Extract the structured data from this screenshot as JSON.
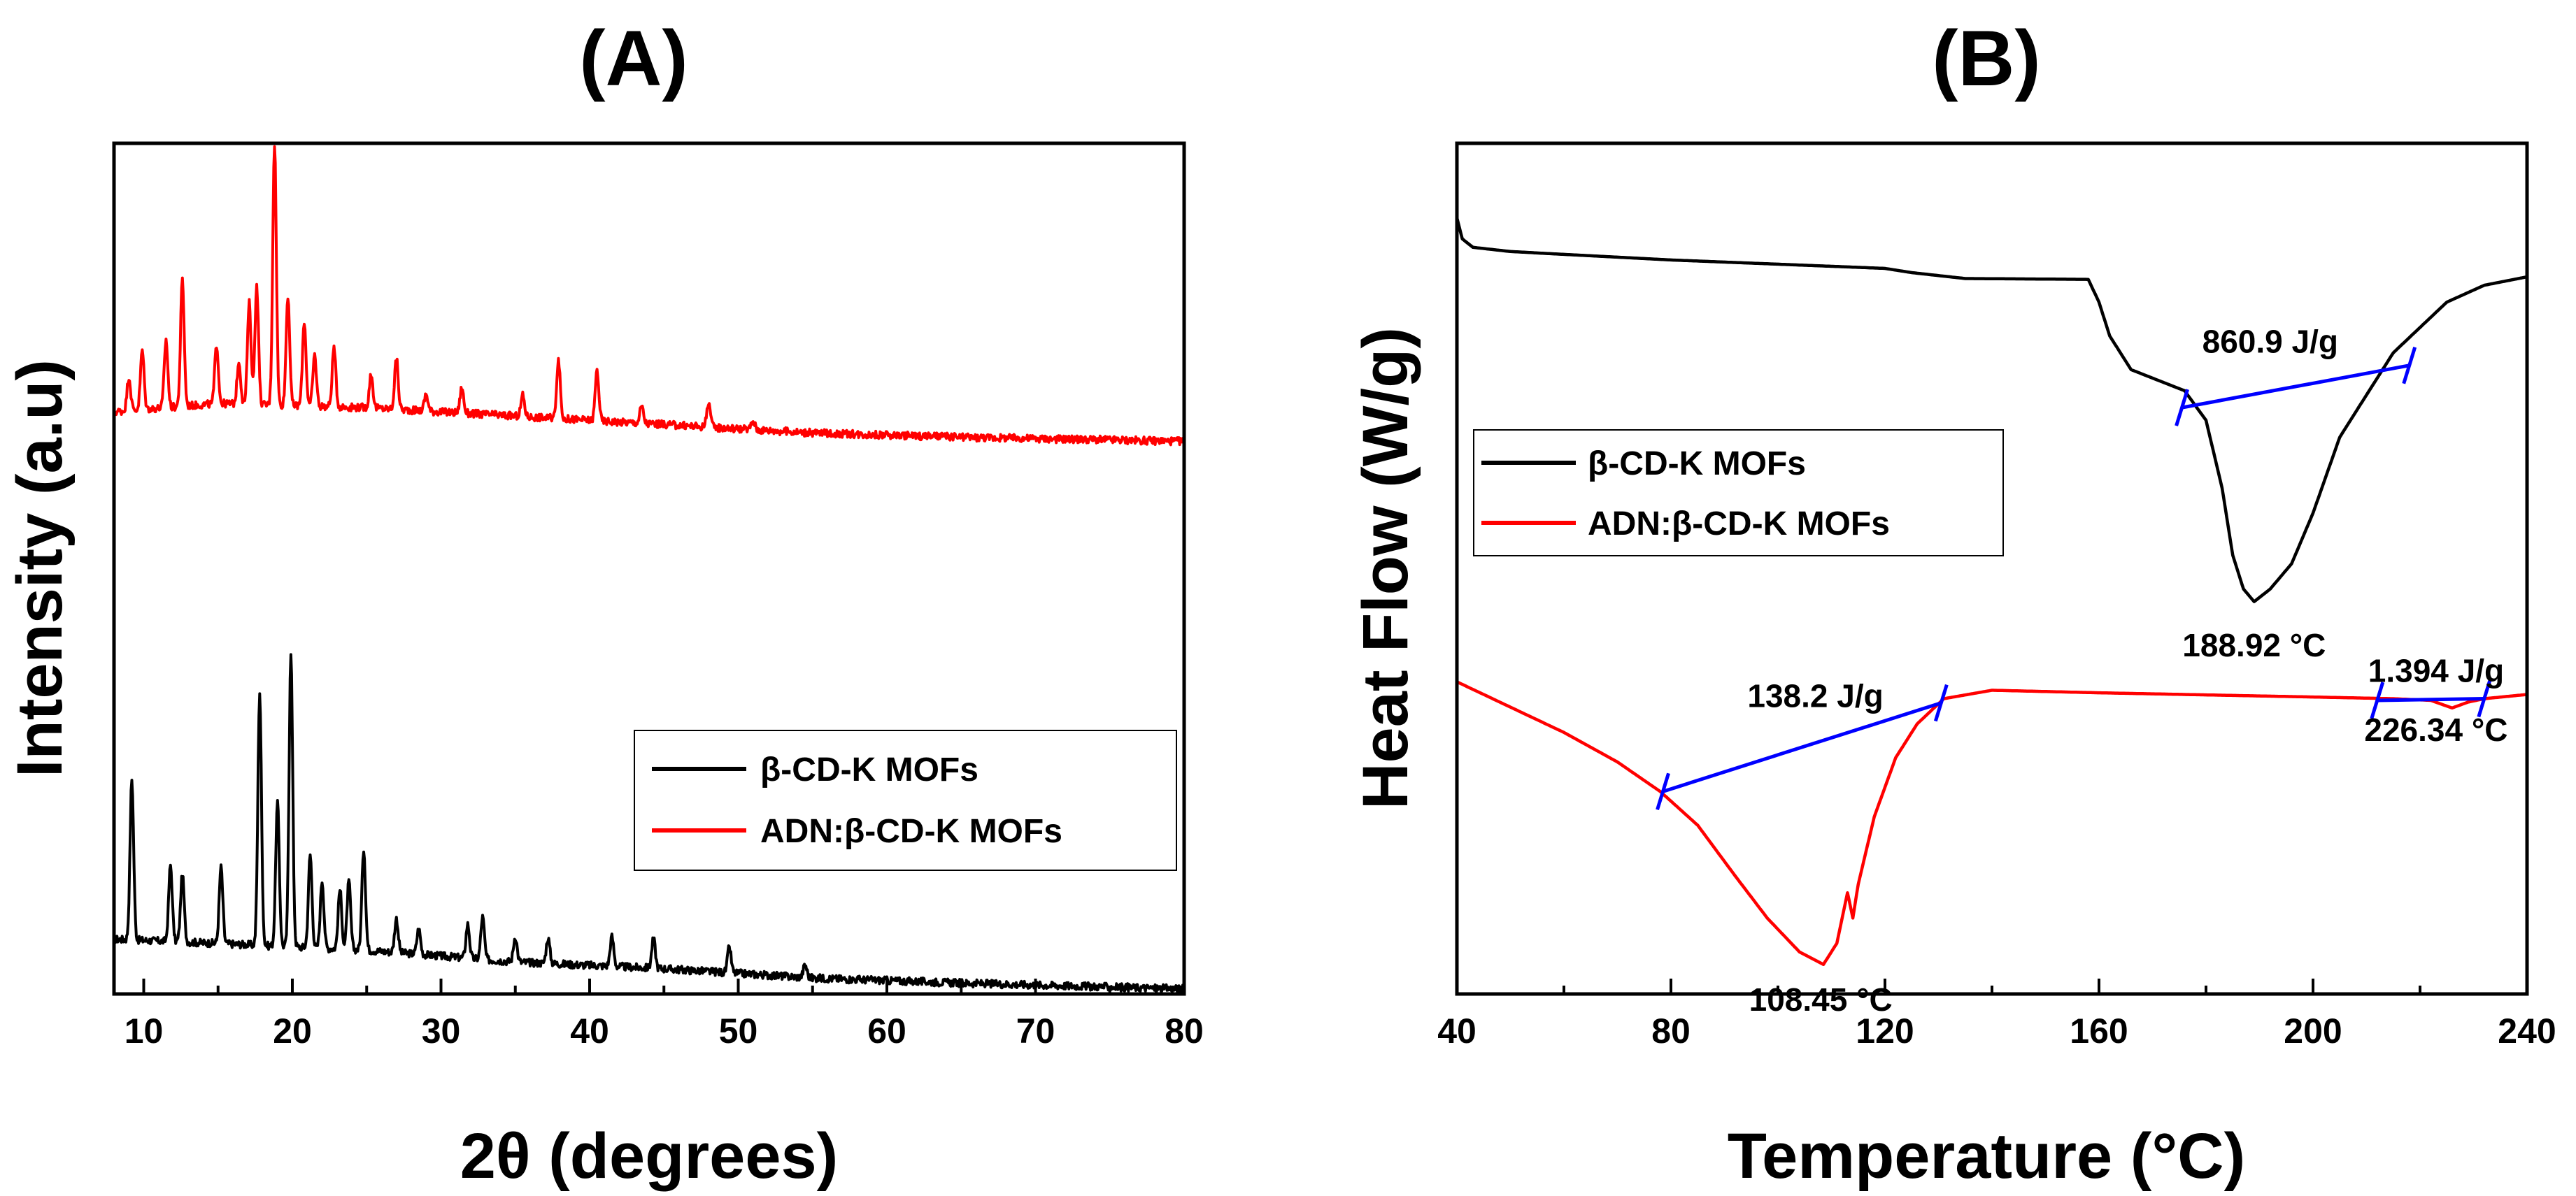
{
  "chart_data": [
    {
      "panel": "(A)",
      "type": "line",
      "xlabel": "2θ (degrees)",
      "ylabel": "Intensity (a.u)",
      "xlim": [
        8,
        80
      ],
      "ylim": [
        0,
        100
      ],
      "xticks": [
        10,
        20,
        30,
        40,
        50,
        60,
        70,
        80
      ],
      "yticks_shown": false,
      "legend": {
        "placement": "center-right",
        "entries": [
          "β-CD-K MOFs",
          "ADN:β-CD-K MOFs"
        ]
      },
      "series": [
        {
          "name": "β-CD-K MOFs",
          "color": "#000000",
          "baseline": [
            [
              8,
              6.5
            ],
            [
              15,
              6.0
            ],
            [
              25,
              5.2
            ],
            [
              35,
              3.8
            ],
            [
              45,
              3.0
            ],
            [
              55,
              1.9
            ],
            [
              65,
              1.3
            ],
            [
              80,
              0.6
            ]
          ],
          "peaks": [
            [
              9.2,
              19
            ],
            [
              11.8,
              9
            ],
            [
              12.6,
              8
            ],
            [
              15.2,
              9
            ],
            [
              17.8,
              30
            ],
            [
              19.0,
              17
            ],
            [
              19.9,
              35
            ],
            [
              21.2,
              11
            ],
            [
              22.0,
              8
            ],
            [
              23.2,
              7
            ],
            [
              23.8,
              8
            ],
            [
              24.8,
              12
            ],
            [
              27.0,
              4
            ],
            [
              28.5,
              3
            ],
            [
              31.8,
              4
            ],
            [
              32.8,
              5
            ],
            [
              35.0,
              3
            ],
            [
              37.2,
              3
            ],
            [
              41.5,
              3.5
            ],
            [
              44.3,
              3.5
            ],
            [
              49.4,
              3
            ],
            [
              54.5,
              1.5
            ]
          ]
        },
        {
          "name": "ADN:β-CD-K MOFs",
          "color": "#ff0000",
          "baseline": [
            [
              8,
              69
            ],
            [
              15,
              70
            ],
            [
              25,
              69.5
            ],
            [
              35,
              68.5
            ],
            [
              45,
              67.5
            ],
            [
              55,
              66.5
            ],
            [
              65,
              66
            ],
            [
              80,
              65.5
            ]
          ],
          "peaks": [
            [
              9.0,
              4
            ],
            [
              9.9,
              7
            ],
            [
              11.5,
              8
            ],
            [
              12.6,
              15
            ],
            [
              14.9,
              7
            ],
            [
              16.4,
              5
            ],
            [
              17.1,
              12
            ],
            [
              17.6,
              14
            ],
            [
              18.8,
              31
            ],
            [
              19.7,
              13
            ],
            [
              20.8,
              10
            ],
            [
              21.5,
              6
            ],
            [
              22.8,
              7
            ],
            [
              25.3,
              4
            ],
            [
              27.0,
              6
            ],
            [
              29.0,
              2
            ],
            [
              31.4,
              3
            ],
            [
              35.5,
              2.5
            ],
            [
              37.9,
              7
            ],
            [
              40.5,
              6
            ],
            [
              43.5,
              2
            ],
            [
              48.0,
              3
            ],
            [
              51.0,
              1
            ]
          ]
        }
      ]
    },
    {
      "panel": "(B)",
      "type": "line",
      "xlabel": "Temperature (°C)",
      "ylabel": "Heat Flow (W/g)",
      "xlim": [
        40,
        240
      ],
      "ylim": [
        0,
        100
      ],
      "xticks": [
        40,
        80,
        120,
        160,
        200,
        240
      ],
      "yticks_shown": false,
      "legend": {
        "placement": "center-left",
        "entries": [
          "β-CD-K MOFs",
          "ADN:β-CD-K MOFs"
        ]
      },
      "series": [
        {
          "name": "β-CD-K MOFs",
          "color": "#000000",
          "points": [
            [
              40,
              92
            ],
            [
              41,
              89.5
            ],
            [
              43,
              88.5
            ],
            [
              50,
              88
            ],
            [
              80,
              87
            ],
            [
              120,
              86
            ],
            [
              125,
              85.5
            ],
            [
              135,
              84.8
            ],
            [
              158,
              84.7
            ],
            [
              160,
              82
            ],
            [
              162,
              78
            ],
            [
              166,
              74
            ],
            [
              172,
              72.5
            ],
            [
              176,
              71.5
            ],
            [
              180,
              68
            ],
            [
              183,
              60
            ],
            [
              185,
              52
            ],
            [
              187,
              48
            ],
            [
              189,
              46.5
            ],
            [
              192,
              48
            ],
            [
              196,
              51
            ],
            [
              200,
              57
            ],
            [
              205,
              66
            ],
            [
              215,
              76
            ],
            [
              225,
              82
            ],
            [
              232,
              84
            ],
            [
              240,
              85
            ]
          ]
        },
        {
          "name": "ADN:β-CD-K MOFs",
          "color": "#ff0000",
          "points": [
            [
              40,
              37
            ],
            [
              50,
              34
            ],
            [
              60,
              31
            ],
            [
              70,
              27.5
            ],
            [
              78,
              24
            ],
            [
              85,
              20
            ],
            [
              92,
              14
            ],
            [
              98,
              9
            ],
            [
              104,
              5
            ],
            [
              108.5,
              3.5
            ],
            [
              111,
              6
            ],
            [
              113,
              12
            ],
            [
              114,
              9
            ],
            [
              115,
              13
            ],
            [
              118,
              21
            ],
            [
              122,
              28
            ],
            [
              126,
              32
            ],
            [
              131,
              35
            ],
            [
              140,
              36
            ],
            [
              160,
              35.7
            ],
            [
              200,
              35.2
            ],
            [
              215,
              35
            ],
            [
              222,
              34.8
            ],
            [
              226,
              33.9
            ],
            [
              229,
              34.6
            ],
            [
              232,
              35
            ],
            [
              240,
              35.5
            ]
          ]
        }
      ],
      "annotations": [
        {
          "text": "860.9 J/g",
          "near": [
            192,
            76
          ]
        },
        {
          "text": "188.92 °C",
          "near": [
            189,
            40
          ]
        },
        {
          "text": "138.2 J/g",
          "near": [
            107,
            34
          ]
        },
        {
          "text": "108.45 °C",
          "near": [
            108,
            -2
          ]
        },
        {
          "text": "1.394 J/g",
          "near": [
            223,
            37
          ]
        },
        {
          "text": "226.34 °C",
          "near": [
            223,
            30
          ]
        }
      ],
      "integration_lines": [
        {
          "from": [
            175.5,
            69.5
          ],
          "to": [
            218,
            74.5
          ],
          "color": "#0000ff"
        },
        {
          "from": [
            78.5,
            24
          ],
          "to": [
            130.5,
            34.5
          ],
          "color": "#0000ff"
        },
        {
          "from": [
            212,
            34.8
          ],
          "to": [
            232,
            35.0
          ],
          "color": "#0000ff"
        }
      ]
    }
  ]
}
